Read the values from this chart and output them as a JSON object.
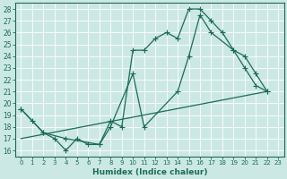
{
  "xlabel": "Humidex (Indice chaleur)",
  "bg_color": "#cce8e4",
  "grid_color": "#b0d4cf",
  "line_color": "#1a6b5a",
  "xlim": [
    -0.5,
    23.5
  ],
  "ylim": [
    15.5,
    28.5
  ],
  "xticks": [
    0,
    1,
    2,
    3,
    4,
    5,
    6,
    7,
    8,
    9,
    10,
    11,
    12,
    13,
    14,
    15,
    16,
    17,
    18,
    19,
    20,
    21,
    22,
    23
  ],
  "yticks": [
    16,
    17,
    18,
    19,
    20,
    21,
    22,
    23,
    24,
    25,
    26,
    27,
    28
  ],
  "line1_x": [
    0,
    1,
    2,
    3,
    4,
    5,
    6,
    7,
    8,
    9,
    10,
    11,
    12,
    13,
    14,
    15,
    16,
    17,
    18,
    19,
    20,
    21,
    22
  ],
  "line1_y": [
    19.5,
    18.5,
    17.5,
    17.0,
    16.0,
    17.0,
    16.5,
    16.5,
    18.5,
    18.0,
    24.5,
    24.5,
    25.5,
    26.0,
    25.5,
    28.0,
    28.0,
    27.0,
    26.0,
    24.5,
    23.0,
    21.5,
    21.0
  ],
  "line2_x": [
    0,
    2,
    4,
    7,
    8,
    10,
    11,
    14,
    15,
    16,
    17,
    19,
    20,
    21,
    22
  ],
  "line2_y": [
    19.5,
    17.5,
    17.0,
    16.5,
    18.0,
    22.5,
    18.0,
    21.0,
    24.0,
    27.5,
    26.0,
    24.5,
    24.0,
    22.5,
    21.0
  ],
  "line3_x": [
    0,
    22
  ],
  "line3_y": [
    17.0,
    21.0
  ]
}
